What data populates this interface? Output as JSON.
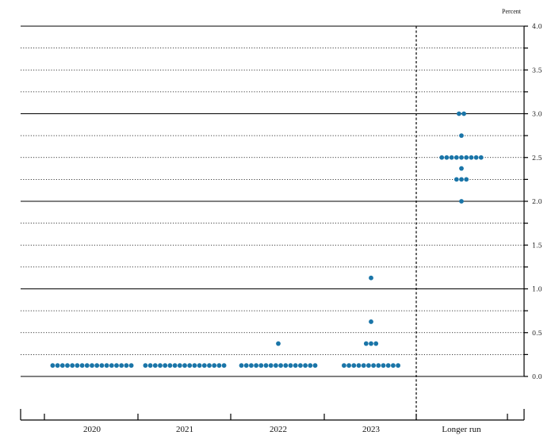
{
  "chart_data": {
    "type": "scatter",
    "unit_label": "Percent",
    "categories": [
      "2020",
      "2021",
      "2022",
      "2023",
      "Longer run"
    ],
    "ylim": [
      0,
      4
    ],
    "yticks": [
      "0.0",
      "0.5",
      "1.0",
      "1.5",
      "2.0",
      "2.5",
      "3.0",
      "3.5",
      "4.0"
    ],
    "minor_step": 0.25,
    "grid": true,
    "series": [
      {
        "category": "2020",
        "points": [
          {
            "y": 0.125,
            "count": 17
          }
        ]
      },
      {
        "category": "2021",
        "points": [
          {
            "y": 0.125,
            "count": 17
          }
        ]
      },
      {
        "category": "2022",
        "points": [
          {
            "y": 0.125,
            "count": 16
          },
          {
            "y": 0.375,
            "count": 1
          }
        ]
      },
      {
        "category": "2023",
        "points": [
          {
            "y": 0.125,
            "count": 12
          },
          {
            "y": 0.375,
            "count": 3
          },
          {
            "y": 0.625,
            "count": 1
          },
          {
            "y": 1.125,
            "count": 1
          }
        ]
      },
      {
        "category": "Longer run",
        "points": [
          {
            "y": 2.0,
            "count": 1
          },
          {
            "y": 2.25,
            "count": 3
          },
          {
            "y": 2.375,
            "count": 1
          },
          {
            "y": 2.5,
            "count": 9
          },
          {
            "y": 2.75,
            "count": 1
          },
          {
            "y": 3.0,
            "count": 2
          }
        ]
      }
    ],
    "colors": {
      "dot": "#1a75a8",
      "grid": "#000000"
    }
  }
}
